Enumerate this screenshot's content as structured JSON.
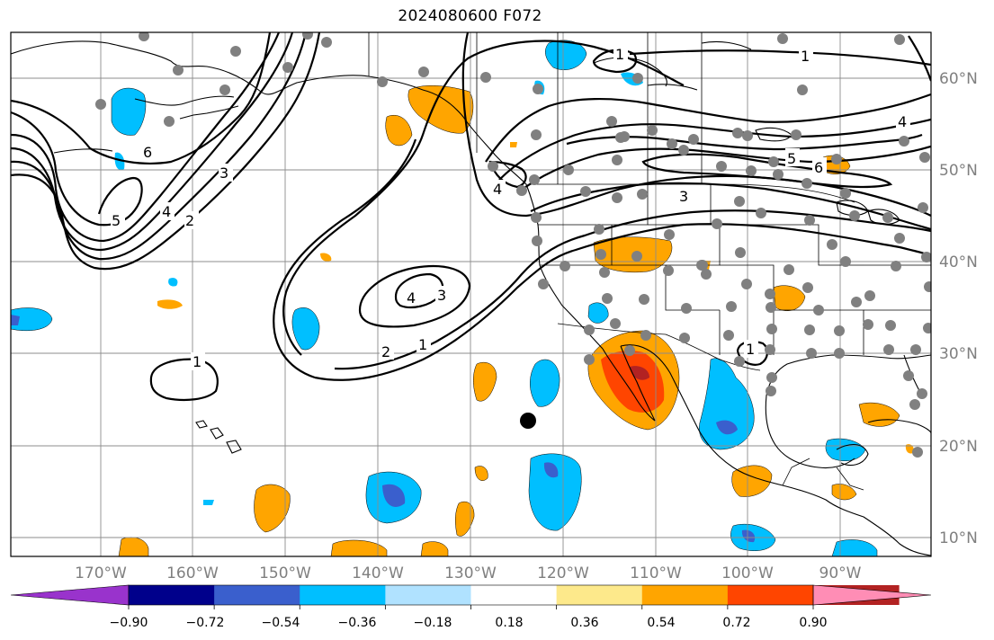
{
  "title": "2024080600 F072",
  "axes": {
    "lon_ticks": [
      "170°W",
      "160°W",
      "150°W",
      "140°W",
      "130°W",
      "120°W",
      "110°W",
      "100°W",
      "90°W"
    ],
    "lat_ticks": [
      "60°N",
      "50°N",
      "40°N",
      "30°N",
      "20°N",
      "10°N"
    ]
  },
  "colorbar": {
    "labels": [
      "−0.90",
      "−0.72",
      "−0.54",
      "−0.36",
      "−0.18",
      "0.18",
      "0.36",
      "0.54",
      "0.72",
      "0.90"
    ],
    "colors": [
      "#9933cc",
      "#00008b",
      "#3a5fcd",
      "#00bfff",
      "#b0e2ff",
      "#ffffff",
      "#fde98b",
      "#ffa500",
      "#ff4500",
      "#b22222",
      "#ff8db5"
    ]
  },
  "contour_labels": [
    "1",
    "2",
    "3",
    "4",
    "5",
    "6",
    "1",
    "2",
    "3",
    "4",
    "1",
    "3",
    "4",
    "5",
    "6",
    "1",
    "4",
    "1"
  ],
  "colors": {
    "grid": "#8c8c8c",
    "station": "#808080",
    "tick_text": "#7f7f7f"
  }
}
